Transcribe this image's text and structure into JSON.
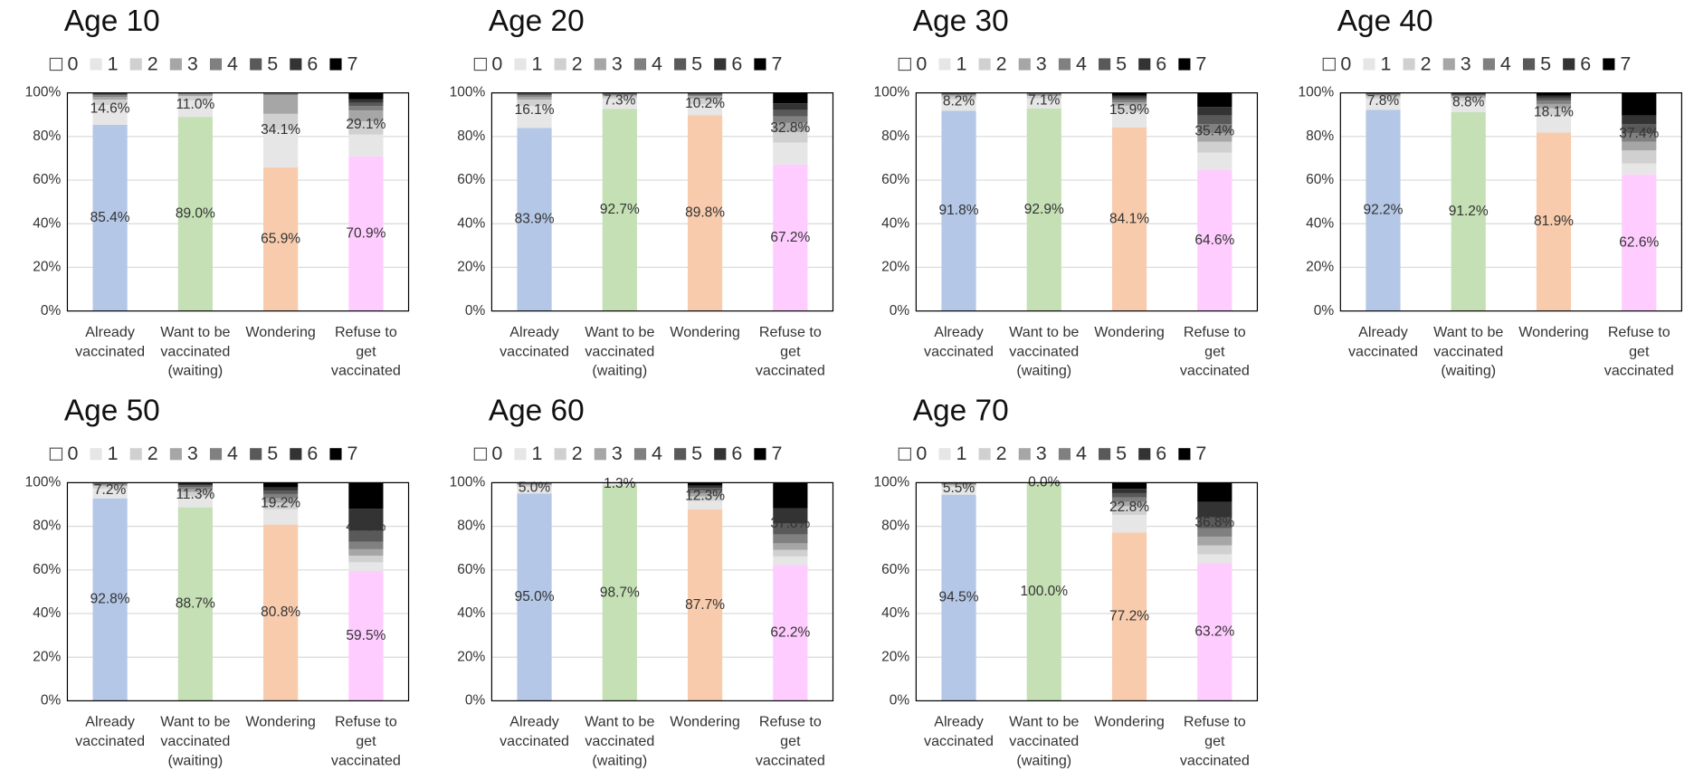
{
  "chart_data": [
    {
      "type": "bar",
      "stacked": true,
      "title": "Age 10",
      "categories": [
        [
          "Already",
          "vaccinated"
        ],
        [
          "Want to be",
          "vaccinated",
          "(waiting)"
        ],
        [
          "Wondering"
        ],
        [
          "Refuse to",
          "get",
          "vaccinated"
        ]
      ],
      "ylim": [
        0,
        100
      ],
      "yticks": [
        {
          "value": 0,
          "label": "0%"
        },
        {
          "value": 20,
          "label": "20%"
        },
        {
          "value": 40,
          "label": "40%"
        },
        {
          "value": 60,
          "label": "60%"
        },
        {
          "value": 80,
          "label": "80%"
        },
        {
          "value": 100,
          "label": "100%"
        }
      ],
      "grid": true,
      "series": [
        {
          "name": "0",
          "color": "#ffffff",
          "colors": [
            "#b4c7e7",
            "#c5e0b4",
            "#f8cbad",
            "#ffccff"
          ],
          "values": [
            85.4,
            89.0,
            65.9,
            70.9
          ],
          "value_labels": [
            "85.4%",
            "89.0%",
            "65.9%",
            "70.9%"
          ]
        },
        {
          "name": "1",
          "color": "#e6e6e6",
          "values": [
            9,
            7.5,
            17,
            10
          ]
        },
        {
          "name": "2",
          "color": "#d0d0d0",
          "values": [
            2.5,
            2,
            7.5,
            6
          ]
        },
        {
          "name": "3",
          "color": "#a6a6a6",
          "values": [
            1.2,
            0.8,
            8.6,
            5
          ]
        },
        {
          "name": "4",
          "color": "#808080",
          "values": [
            0.8,
            0.3,
            0.6,
            2
          ]
        },
        {
          "name": "5",
          "color": "#595959",
          "values": [
            0.5,
            0.2,
            0.2,
            1.5
          ]
        },
        {
          "name": "6",
          "color": "#333333",
          "values": [
            0.4,
            0.1,
            0.1,
            1.6
          ]
        },
        {
          "name": "7",
          "color": "#000000",
          "values": [
            0.2,
            0.1,
            0.1,
            3.0
          ]
        }
      ],
      "rest": {
        "values": [
          14.6,
          11.0,
          34.1,
          29.1
        ],
        "value_labels": [
          "14.6%",
          "11.0%",
          "34.1%",
          "29.1%"
        ]
      }
    },
    {
      "type": "bar",
      "stacked": true,
      "title": "Age 20",
      "categories": [
        [
          "Already",
          "vaccinated"
        ],
        [
          "Want to be",
          "vaccinated",
          "(waiting)"
        ],
        [
          "Wondering"
        ],
        [
          "Refuse to",
          "get",
          "vaccinated"
        ]
      ],
      "ylim": [
        0,
        100
      ],
      "yticks": [
        {
          "value": 0,
          "label": "0%"
        },
        {
          "value": 20,
          "label": "20%"
        },
        {
          "value": 40,
          "label": "40%"
        },
        {
          "value": 60,
          "label": "60%"
        },
        {
          "value": 80,
          "label": "80%"
        },
        {
          "value": 100,
          "label": "100%"
        }
      ],
      "grid": true,
      "series": [
        {
          "name": "0",
          "color": "#ffffff",
          "colors": [
            "#b4c7e7",
            "#c5e0b4",
            "#f8cbad",
            "#ffccff"
          ],
          "values": [
            83.9,
            92.7,
            89.8,
            67.2
          ],
          "value_labels": [
            "83.9%",
            "92.7%",
            "89.8%",
            "67.2%"
          ]
        },
        {
          "name": "1",
          "color": "#e6e6e6",
          "values": [
            10,
            4.5,
            5,
            10
          ]
        },
        {
          "name": "2",
          "color": "#d0d0d0",
          "values": [
            3,
            1.2,
            2.5,
            5
          ]
        },
        {
          "name": "3",
          "color": "#a6a6a6",
          "values": [
            1.3,
            0.6,
            1.2,
            4
          ]
        },
        {
          "name": "4",
          "color": "#808080",
          "values": [
            0.8,
            0.4,
            0.6,
            3
          ]
        },
        {
          "name": "5",
          "color": "#595959",
          "values": [
            0.5,
            0.3,
            0.4,
            3
          ]
        },
        {
          "name": "6",
          "color": "#333333",
          "values": [
            0.3,
            0.2,
            0.3,
            3
          ]
        },
        {
          "name": "7",
          "color": "#000000",
          "values": [
            0.2,
            0.1,
            0.2,
            4.8
          ]
        }
      ],
      "rest": {
        "values": [
          16.1,
          7.3,
          10.2,
          32.8
        ],
        "value_labels": [
          "16.1%",
          "7.3%",
          "10.2%",
          "32.8%"
        ]
      }
    },
    {
      "type": "bar",
      "stacked": true,
      "title": "Age 30",
      "categories": [
        [
          "Already",
          "vaccinated"
        ],
        [
          "Want to be",
          "vaccinated",
          "(waiting)"
        ],
        [
          "Wondering"
        ],
        [
          "Refuse to",
          "get",
          "vaccinated"
        ]
      ],
      "ylim": [
        0,
        100
      ],
      "yticks": [
        {
          "value": 0,
          "label": "0%"
        },
        {
          "value": 20,
          "label": "20%"
        },
        {
          "value": 40,
          "label": "40%"
        },
        {
          "value": 60,
          "label": "60%"
        },
        {
          "value": 80,
          "label": "80%"
        },
        {
          "value": 100,
          "label": "100%"
        }
      ],
      "grid": true,
      "series": [
        {
          "name": "0",
          "color": "#ffffff",
          "colors": [
            "#b4c7e7",
            "#c5e0b4",
            "#f8cbad",
            "#ffccff"
          ],
          "values": [
            91.8,
            92.9,
            84.1,
            64.6
          ],
          "value_labels": [
            "91.8%",
            "92.9%",
            "84.1%",
            "64.6%"
          ]
        },
        {
          "name": "1",
          "color": "#e6e6e6",
          "values": [
            5,
            4.5,
            7,
            8
          ]
        },
        {
          "name": "2",
          "color": "#d0d0d0",
          "values": [
            1.5,
            1.2,
            3,
            5
          ]
        },
        {
          "name": "3",
          "color": "#a6a6a6",
          "values": [
            0.7,
            0.6,
            1.5,
            4
          ]
        },
        {
          "name": "4",
          "color": "#808080",
          "values": [
            0.4,
            0.3,
            1.2,
            4
          ]
        },
        {
          "name": "5",
          "color": "#595959",
          "values": [
            0.3,
            0.3,
            1,
            4
          ]
        },
        {
          "name": "6",
          "color": "#333333",
          "values": [
            0.2,
            0.1,
            1,
            4
          ]
        },
        {
          "name": "7",
          "color": "#000000",
          "values": [
            0.1,
            0.1,
            1.2,
            6.4
          ]
        }
      ],
      "rest": {
        "values": [
          8.2,
          7.1,
          15.9,
          35.4
        ],
        "value_labels": [
          "8.2%",
          "7.1%",
          "15.9%",
          "35.4%"
        ]
      }
    },
    {
      "type": "bar",
      "stacked": true,
      "title": "Age 40",
      "categories": [
        [
          "Already",
          "vaccinated"
        ],
        [
          "Want to be",
          "vaccinated",
          "(waiting)"
        ],
        [
          "Wondering"
        ],
        [
          "Refuse to",
          "get",
          "vaccinated"
        ]
      ],
      "ylim": [
        0,
        100
      ],
      "yticks": [
        {
          "value": 0,
          "label": "0%"
        },
        {
          "value": 20,
          "label": "20%"
        },
        {
          "value": 40,
          "label": "40%"
        },
        {
          "value": 60,
          "label": "60%"
        },
        {
          "value": 80,
          "label": "80%"
        },
        {
          "value": 100,
          "label": "100%"
        }
      ],
      "grid": true,
      "series": [
        {
          "name": "0",
          "color": "#ffffff",
          "colors": [
            "#b4c7e7",
            "#c5e0b4",
            "#f8cbad",
            "#ffccff"
          ],
          "values": [
            92.2,
            91.2,
            81.9,
            62.6
          ],
          "value_labels": [
            "92.2%",
            "91.2%",
            "81.9%",
            "62.6%"
          ]
        },
        {
          "name": "1",
          "color": "#e6e6e6",
          "values": [
            5,
            5,
            8,
            5
          ]
        },
        {
          "name": "2",
          "color": "#d0d0d0",
          "values": [
            1.2,
            1.5,
            3,
            6
          ]
        },
        {
          "name": "3",
          "color": "#a6a6a6",
          "values": [
            0.6,
            0.8,
            2,
            4
          ]
        },
        {
          "name": "4",
          "color": "#808080",
          "values": [
            0.4,
            0.5,
            1.5,
            4
          ]
        },
        {
          "name": "5",
          "color": "#595959",
          "values": [
            0.3,
            0.4,
            1.2,
            4
          ]
        },
        {
          "name": "6",
          "color": "#333333",
          "values": [
            0.2,
            0.4,
            1.2,
            4
          ]
        },
        {
          "name": "7",
          "color": "#000000",
          "values": [
            0.1,
            0.2,
            1.2,
            10.4
          ]
        }
      ],
      "rest": {
        "values": [
          7.8,
          8.8,
          18.1,
          37.4
        ],
        "value_labels": [
          "7.8%",
          "8.8%",
          "18.1%",
          "37.4%"
        ]
      }
    },
    {
      "type": "bar",
      "stacked": true,
      "title": "Age 50",
      "categories": [
        [
          "Already",
          "vaccinated"
        ],
        [
          "Want to be",
          "vaccinated",
          "(waiting)"
        ],
        [
          "Wondering"
        ],
        [
          "Refuse to",
          "get",
          "vaccinated"
        ]
      ],
      "ylim": [
        0,
        100
      ],
      "yticks": [
        {
          "value": 0,
          "label": "0%"
        },
        {
          "value": 20,
          "label": "20%"
        },
        {
          "value": 40,
          "label": "40%"
        },
        {
          "value": 60,
          "label": "60%"
        },
        {
          "value": 80,
          "label": "80%"
        },
        {
          "value": 100,
          "label": "100%"
        }
      ],
      "grid": true,
      "series": [
        {
          "name": "0",
          "color": "#ffffff",
          "colors": [
            "#b4c7e7",
            "#c5e0b4",
            "#f8cbad",
            "#ffccff"
          ],
          "values": [
            92.8,
            88.7,
            80.8,
            59.5
          ],
          "value_labels": [
            "92.8%",
            "88.7%",
            "80.8%",
            "59.5%"
          ]
        },
        {
          "name": "1",
          "color": "#e6e6e6",
          "values": [
            4.5,
            5,
            7,
            4
          ]
        },
        {
          "name": "2",
          "color": "#d0d0d0",
          "values": [
            1.2,
            2,
            3,
            3
          ]
        },
        {
          "name": "3",
          "color": "#a6a6a6",
          "values": [
            0.6,
            1.3,
            2,
            3
          ]
        },
        {
          "name": "4",
          "color": "#808080",
          "values": [
            0.4,
            1,
            2,
            3.5
          ]
        },
        {
          "name": "5",
          "color": "#595959",
          "values": [
            0.3,
            0.8,
            1.5,
            5
          ]
        },
        {
          "name": "6",
          "color": "#333333",
          "values": [
            0.1,
            0.6,
            1.5,
            10
          ]
        },
        {
          "name": "7",
          "color": "#000000",
          "values": [
            0.1,
            0.6,
            2.2,
            12
          ]
        }
      ],
      "rest": {
        "values": [
          7.2,
          11.3,
          19.2,
          40.5
        ],
        "value_labels": [
          "7.2%",
          "11.3%",
          "19.2%",
          "40.5%"
        ]
      }
    },
    {
      "type": "bar",
      "stacked": true,
      "title": "Age 60",
      "categories": [
        [
          "Already",
          "vaccinated"
        ],
        [
          "Want to be",
          "vaccinated",
          "(waiting)"
        ],
        [
          "Wondering"
        ],
        [
          "Refuse to",
          "get",
          "vaccinated"
        ]
      ],
      "ylim": [
        0,
        100
      ],
      "yticks": [
        {
          "value": 0,
          "label": "0%"
        },
        {
          "value": 20,
          "label": "20%"
        },
        {
          "value": 40,
          "label": "40%"
        },
        {
          "value": 60,
          "label": "60%"
        },
        {
          "value": 80,
          "label": "80%"
        },
        {
          "value": 100,
          "label": "100%"
        }
      ],
      "grid": true,
      "series": [
        {
          "name": "0",
          "color": "#ffffff",
          "colors": [
            "#b4c7e7",
            "#c5e0b4",
            "#f8cbad",
            "#ffccff"
          ],
          "values": [
            95.0,
            98.7,
            87.7,
            62.2
          ],
          "value_labels": [
            "95.0%",
            "98.7%",
            "87.7%",
            "62.2%"
          ]
        },
        {
          "name": "1",
          "color": "#e6e6e6",
          "values": [
            3,
            0.8,
            4,
            4
          ]
        },
        {
          "name": "2",
          "color": "#d0d0d0",
          "values": [
            0.8,
            0.2,
            2,
            3
          ]
        },
        {
          "name": "3",
          "color": "#a6a6a6",
          "values": [
            0.5,
            0.1,
            1.5,
            3
          ]
        },
        {
          "name": "4",
          "color": "#808080",
          "values": [
            0.3,
            0.1,
            1.2,
            4
          ]
        },
        {
          "name": "5",
          "color": "#595959",
          "values": [
            0.2,
            0.1,
            1.2,
            5
          ]
        },
        {
          "name": "6",
          "color": "#333333",
          "values": [
            0.1,
            0,
            1,
            7
          ]
        },
        {
          "name": "7",
          "color": "#000000",
          "values": [
            0.1,
            0,
            1.4,
            11.8
          ]
        }
      ],
      "rest": {
        "values": [
          5.0,
          1.3,
          12.3,
          37.8
        ],
        "value_labels": [
          "5.0%",
          "1.3%",
          "12.3%",
          "37.8%"
        ]
      }
    },
    {
      "type": "bar",
      "stacked": true,
      "title": "Age 70",
      "categories": [
        [
          "Already",
          "vaccinated"
        ],
        [
          "Want to be",
          "vaccinated",
          "(waiting)"
        ],
        [
          "Wondering"
        ],
        [
          "Refuse to",
          "get",
          "vaccinated"
        ]
      ],
      "ylim": [
        0,
        100
      ],
      "yticks": [
        {
          "value": 0,
          "label": "0%"
        },
        {
          "value": 20,
          "label": "20%"
        },
        {
          "value": 40,
          "label": "40%"
        },
        {
          "value": 60,
          "label": "60%"
        },
        {
          "value": 80,
          "label": "80%"
        },
        {
          "value": 100,
          "label": "100%"
        }
      ],
      "grid": true,
      "series": [
        {
          "name": "0",
          "color": "#ffffff",
          "colors": [
            "#b4c7e7",
            "#c5e0b4",
            "#f8cbad",
            "#ffccff"
          ],
          "values": [
            94.5,
            100.0,
            77.2,
            63.2
          ],
          "value_labels": [
            "94.5%",
            "100.0%",
            "77.2%",
            "63.2%"
          ]
        },
        {
          "name": "1",
          "color": "#e6e6e6",
          "values": [
            3.5,
            0,
            8,
            4
          ]
        },
        {
          "name": "2",
          "color": "#d0d0d0",
          "values": [
            0.8,
            0,
            4,
            4
          ]
        },
        {
          "name": "3",
          "color": "#a6a6a6",
          "values": [
            0.5,
            0,
            2,
            4
          ]
        },
        {
          "name": "4",
          "color": "#808080",
          "values": [
            0.3,
            0,
            2,
            4
          ]
        },
        {
          "name": "5",
          "color": "#595959",
          "values": [
            0.2,
            0,
            2,
            5
          ]
        },
        {
          "name": "6",
          "color": "#333333",
          "values": [
            0.1,
            0,
            2,
            7
          ]
        },
        {
          "name": "7",
          "color": "#000000",
          "values": [
            0.1,
            0,
            2.8,
            8.8
          ]
        }
      ],
      "rest": {
        "values": [
          5.5,
          0.0,
          22.8,
          36.8
        ],
        "value_labels": [
          "5.5%",
          "0.0%",
          "22.8%",
          "36.8%"
        ]
      }
    }
  ]
}
